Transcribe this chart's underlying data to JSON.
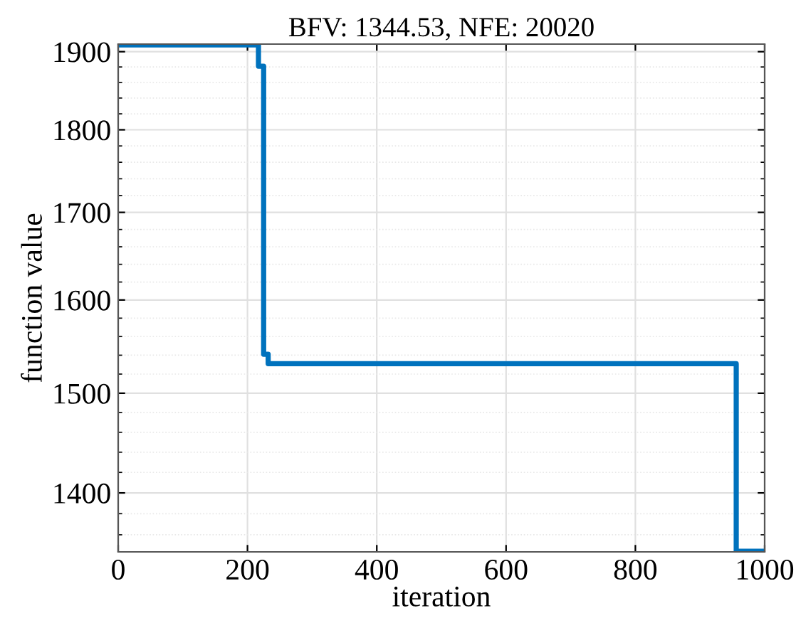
{
  "chart_data": {
    "type": "step",
    "title": "BFV: 1344.53, NFE: 20020",
    "xlabel": "iteration",
    "ylabel": "function value",
    "x": [
      0,
      217,
      225,
      232,
      956,
      1000
    ],
    "series": [
      {
        "color": "#0072bd",
        "values": [
          1909,
          1881,
          1541,
          1531,
          1344.53,
          1344.53
        ]
      }
    ],
    "xlim": [
      0,
      1000
    ],
    "xticks": [
      0,
      200,
      400,
      600,
      800,
      1000
    ],
    "ylim": [
      1344,
      1910
    ],
    "yticks": [
      1400,
      1500,
      1600,
      1700,
      1800,
      1900
    ],
    "log": "y",
    "grid": true,
    "line_style": "solid",
    "marker": "none"
  }
}
